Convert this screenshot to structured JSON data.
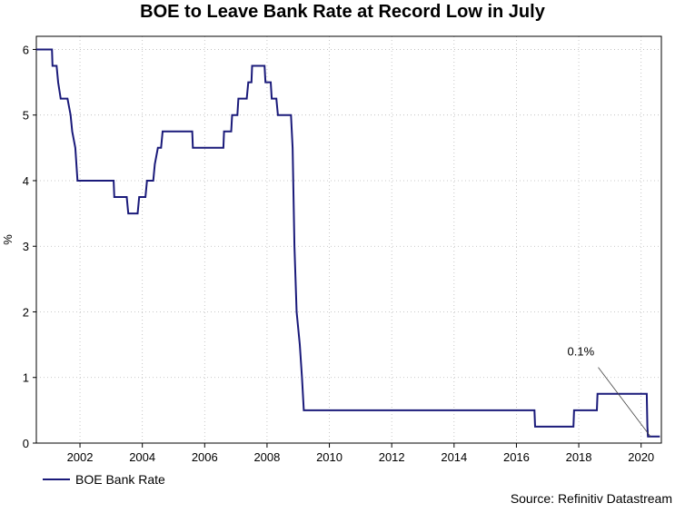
{
  "chart_data": {
    "type": "line",
    "title": "BOE to Leave Bank Rate at Record Low in July",
    "xlabel": "",
    "ylabel": "%",
    "xlim": [
      2000.6,
      2020.65
    ],
    "ylim": [
      0,
      6.2
    ],
    "x_ticks": [
      "2002",
      "2004",
      "2006",
      "2008",
      "2010",
      "2012",
      "2014",
      "2016",
      "2018",
      "2020"
    ],
    "y_ticks": [
      "0",
      "1",
      "2",
      "3",
      "4",
      "5",
      "6"
    ],
    "grid": true,
    "legend_position": "bottom-left",
    "series": [
      {
        "name": "BOE Bank Rate",
        "color": "#1a1a7a",
        "points": [
          [
            2000.6,
            6.0
          ],
          [
            2001.1,
            6.0
          ],
          [
            2001.12,
            5.75
          ],
          [
            2001.25,
            5.75
          ],
          [
            2001.3,
            5.5
          ],
          [
            2001.38,
            5.25
          ],
          [
            2001.6,
            5.25
          ],
          [
            2001.7,
            5.0
          ],
          [
            2001.75,
            4.75
          ],
          [
            2001.85,
            4.5
          ],
          [
            2001.92,
            4.0
          ],
          [
            2003.08,
            4.0
          ],
          [
            2003.1,
            3.75
          ],
          [
            2003.5,
            3.75
          ],
          [
            2003.55,
            3.5
          ],
          [
            2003.85,
            3.5
          ],
          [
            2003.9,
            3.75
          ],
          [
            2004.1,
            3.75
          ],
          [
            2004.15,
            4.0
          ],
          [
            2004.35,
            4.0
          ],
          [
            2004.4,
            4.25
          ],
          [
            2004.5,
            4.5
          ],
          [
            2004.6,
            4.5
          ],
          [
            2004.65,
            4.75
          ],
          [
            2005.6,
            4.75
          ],
          [
            2005.62,
            4.5
          ],
          [
            2006.6,
            4.5
          ],
          [
            2006.62,
            4.75
          ],
          [
            2006.85,
            4.75
          ],
          [
            2006.88,
            5.0
          ],
          [
            2007.05,
            5.0
          ],
          [
            2007.08,
            5.25
          ],
          [
            2007.35,
            5.25
          ],
          [
            2007.4,
            5.5
          ],
          [
            2007.5,
            5.5
          ],
          [
            2007.52,
            5.75
          ],
          [
            2007.92,
            5.75
          ],
          [
            2007.95,
            5.5
          ],
          [
            2008.12,
            5.5
          ],
          [
            2008.15,
            5.25
          ],
          [
            2008.3,
            5.25
          ],
          [
            2008.35,
            5.0
          ],
          [
            2008.77,
            5.0
          ],
          [
            2008.82,
            4.5
          ],
          [
            2008.88,
            3.0
          ],
          [
            2008.95,
            2.0
          ],
          [
            2009.05,
            1.5
          ],
          [
            2009.12,
            1.0
          ],
          [
            2009.18,
            0.5
          ],
          [
            2016.58,
            0.5
          ],
          [
            2016.6,
            0.25
          ],
          [
            2017.83,
            0.25
          ],
          [
            2017.85,
            0.5
          ],
          [
            2018.58,
            0.5
          ],
          [
            2018.6,
            0.75
          ],
          [
            2020.18,
            0.75
          ],
          [
            2020.2,
            0.25
          ],
          [
            2020.22,
            0.1
          ],
          [
            2020.6,
            0.1
          ]
        ]
      }
    ],
    "annotations": [
      {
        "text": "0.1%",
        "x": 2020.3,
        "y": 0.1
      }
    ]
  },
  "legend": {
    "label": "BOE Bank Rate"
  },
  "source": "Source: Refinitiv Datastream"
}
